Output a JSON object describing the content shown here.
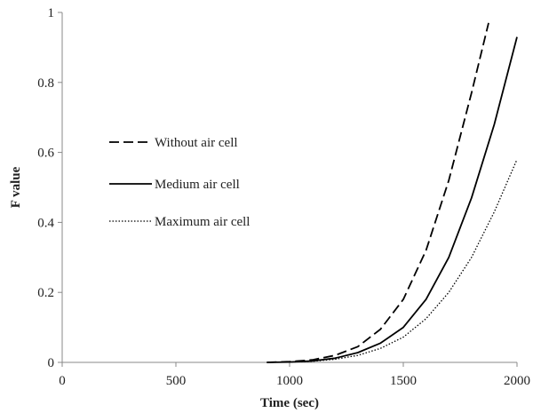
{
  "chart_data": {
    "type": "line",
    "title": "",
    "xlabel": "Time (sec)",
    "ylabel": "F value",
    "xlim": [
      0,
      2000
    ],
    "ylim": [
      0,
      1
    ],
    "x_ticks": [
      0,
      500,
      1000,
      1500,
      2000
    ],
    "y_ticks": [
      0,
      0.2,
      0.4,
      0.6,
      0.8,
      1
    ],
    "y_tick_labels": [
      "0",
      "0.2",
      "0.4",
      "0.6",
      "0.8",
      "1"
    ],
    "grid": false,
    "legend_position": "left-middle",
    "series": [
      {
        "name": "Without air cell",
        "style": "dashed",
        "color": "#000000",
        "x": [
          900,
          1000,
          1100,
          1200,
          1300,
          1400,
          1500,
          1600,
          1700,
          1800,
          1875
        ],
        "y": [
          0,
          0.002,
          0.007,
          0.02,
          0.045,
          0.095,
          0.18,
          0.32,
          0.52,
          0.77,
          0.97
        ]
      },
      {
        "name": "Medium air cell",
        "style": "solid",
        "color": "#000000",
        "x": [
          900,
          1000,
          1100,
          1200,
          1300,
          1400,
          1500,
          1600,
          1700,
          1800,
          1900,
          2000
        ],
        "y": [
          0,
          0.001,
          0.004,
          0.012,
          0.028,
          0.055,
          0.1,
          0.18,
          0.3,
          0.47,
          0.68,
          0.93
        ]
      },
      {
        "name": "Maximum air cell",
        "style": "dotted",
        "color": "#000000",
        "x": [
          900,
          1000,
          1100,
          1200,
          1300,
          1400,
          1500,
          1600,
          1700,
          1800,
          1900,
          2000
        ],
        "y": [
          0,
          0.001,
          0.003,
          0.009,
          0.02,
          0.04,
          0.072,
          0.125,
          0.2,
          0.3,
          0.43,
          0.58
        ]
      }
    ]
  }
}
